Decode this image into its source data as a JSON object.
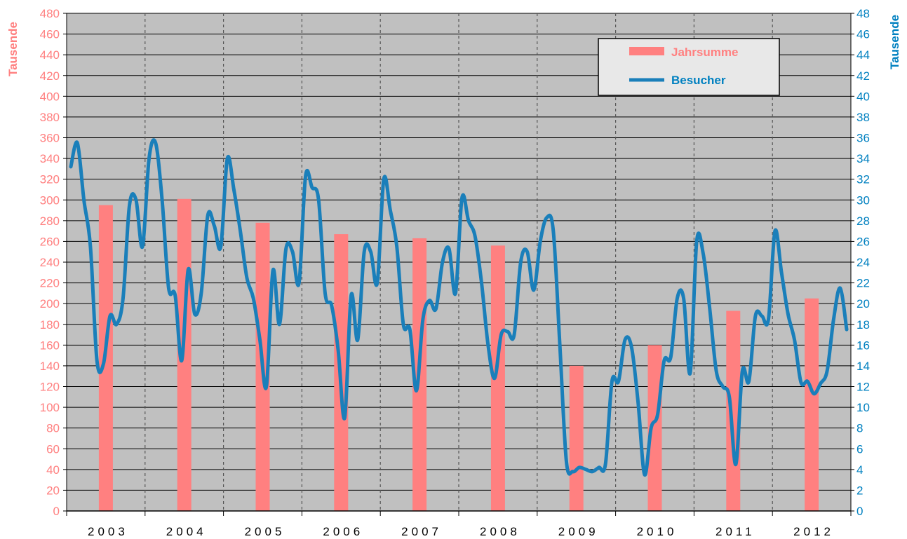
{
  "chart_data": {
    "type": "bar+line",
    "plot_background": "#c0c0c0",
    "grid": true,
    "legend": {
      "placement": "top-right",
      "entries": [
        "Jahrsumme",
        "Besucher"
      ]
    },
    "colors": {
      "left_axis": "#ff8080",
      "right_axis": "#0080c0",
      "bars": "#ff8080",
      "line": "#1a7fba",
      "grid": "#000000"
    },
    "left_axis": {
      "label": "Tausende",
      "min": 0,
      "max": 480,
      "step": 20,
      "ticks": [
        "0",
        "20",
        "40",
        "60",
        "80",
        "100",
        "120",
        "140",
        "160",
        "180",
        "200",
        "220",
        "240",
        "260",
        "280",
        "300",
        "320",
        "340",
        "360",
        "380",
        "400",
        "420",
        "440",
        "460",
        "480"
      ]
    },
    "right_axis": {
      "label": "Tausende",
      "min": 0,
      "max": 48,
      "step": 2,
      "ticks": [
        "0",
        "2",
        "4",
        "6",
        "8",
        "10",
        "12",
        "14",
        "16",
        "18",
        "20",
        "22",
        "24",
        "26",
        "28",
        "30",
        "32",
        "34",
        "36",
        "38",
        "40",
        "42",
        "44",
        "46",
        "48"
      ]
    },
    "categories": [
      "2003",
      "2004",
      "2005",
      "2006",
      "2007",
      "2008",
      "2009",
      "2010",
      "2011",
      "2012"
    ],
    "bar_series": {
      "name": "Jahrsumme",
      "axis": "left",
      "values": [
        295,
        301,
        278,
        267,
        263,
        256,
        140,
        160,
        193,
        205
      ]
    },
    "line_series": {
      "name": "Besucher",
      "axis": "right",
      "x_unit": "month",
      "values": [
        33.2,
        35.5,
        30.0,
        25.5,
        14.5,
        14.2,
        18.8,
        18.0,
        20.5,
        29.5,
        30.0,
        25.5,
        34.0,
        35.5,
        30.0,
        21.5,
        20.8,
        14.5,
        23.3,
        19.0,
        21.0,
        28.5,
        27.5,
        25.5,
        34.0,
        31.0,
        27.0,
        22.5,
        20.5,
        16.5,
        12.0,
        23.2,
        18.0,
        25.3,
        25.0,
        22.0,
        32.3,
        31.2,
        30.0,
        21.0,
        19.8,
        15.5,
        9.0,
        20.8,
        16.5,
        25.0,
        25.0,
        22.0,
        32.0,
        29.0,
        25.5,
        18.0,
        17.5,
        11.6,
        18.5,
        20.3,
        19.5,
        24.0,
        25.3,
        21.0,
        30.2,
        28.0,
        26.5,
        22.0,
        16.0,
        12.8,
        17.0,
        17.3,
        17.0,
        24.0,
        25.0,
        21.3,
        26.0,
        28.3,
        27.0,
        16.0,
        4.8,
        3.8,
        4.2,
        4.0,
        3.8,
        4.2,
        4.5,
        12.5,
        12.5,
        16.5,
        15.8,
        10.5,
        3.5,
        8.0,
        9.3,
        14.5,
        14.8,
        20.5,
        20.5,
        13.3,
        26.0,
        24.8,
        19.5,
        13.5,
        12.0,
        11.0,
        4.5,
        13.5,
        12.5,
        18.8,
        18.8,
        18.5,
        27.0,
        23.0,
        19.0,
        16.5,
        12.4,
        12.5,
        11.3,
        12.3,
        13.5,
        18.5,
        21.5,
        17.5
      ]
    }
  }
}
